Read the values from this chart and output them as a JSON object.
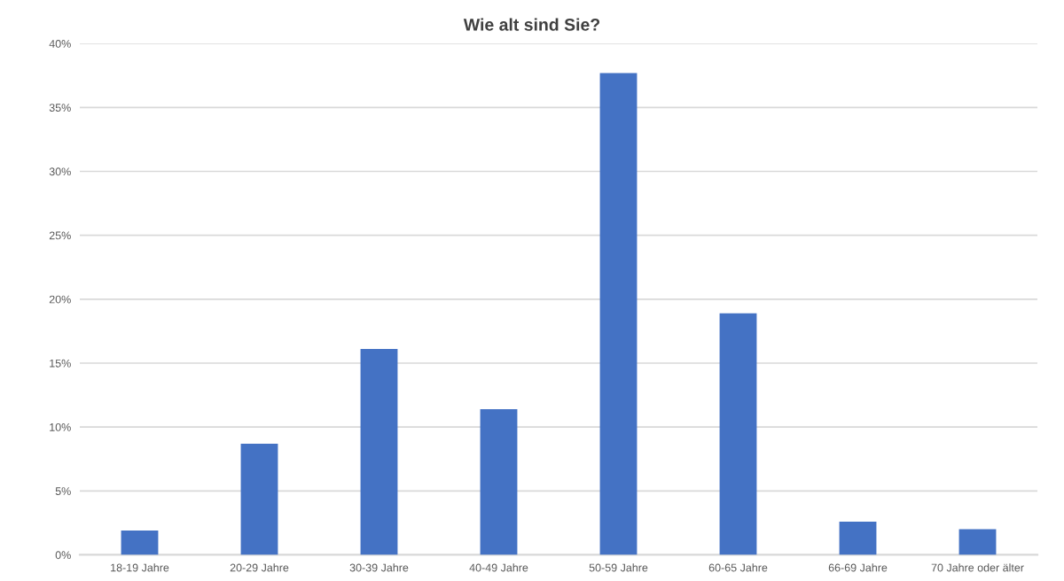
{
  "chart_data": {
    "type": "bar",
    "title": "Wie alt sind Sie?",
    "categories": [
      "18-19 Jahre",
      "20-29 Jahre",
      "30-39 Jahre",
      "40-49 Jahre",
      "50-59 Jahre",
      "60-65 Jahre",
      "66-69 Jahre",
      "70 Jahre oder älter"
    ],
    "values": [
      1.9,
      8.7,
      16.1,
      11.4,
      37.7,
      18.9,
      2.6,
      2.0
    ],
    "color": "#4472c4",
    "ylim": [
      0,
      40
    ],
    "yticks": [
      {
        "value": 0,
        "label": "0%"
      },
      {
        "value": 5,
        "label": "5%"
      },
      {
        "value": 10,
        "label": "10%"
      },
      {
        "value": 15,
        "label": "15%"
      },
      {
        "value": 20,
        "label": "20%"
      },
      {
        "value": 25,
        "label": "25%"
      },
      {
        "value": 30,
        "label": "30%"
      },
      {
        "value": 35,
        "label": "35%"
      },
      {
        "value": 40,
        "label": "40%"
      }
    ],
    "grid": "y"
  }
}
